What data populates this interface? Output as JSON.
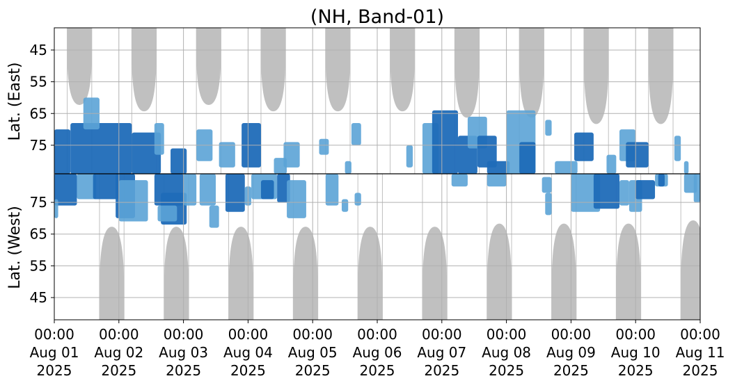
{
  "chart_data": {
    "type": "heatmap",
    "title": "(NH, Band-01)",
    "ylabel_top": "Lat. (East)",
    "ylabel_bottom": "Lat. (West)",
    "x_range": [
      "2025-08-01T00:00",
      "2025-08-11T00:00"
    ],
    "x_ticks": [
      {
        "time": "00:00",
        "date": "Aug 01",
        "year": "2025"
      },
      {
        "time": "00:00",
        "date": "Aug 02",
        "year": "2025"
      },
      {
        "time": "00:00",
        "date": "Aug 03",
        "year": "2025"
      },
      {
        "time": "00:00",
        "date": "Aug 04",
        "year": "2025"
      },
      {
        "time": "00:00",
        "date": "Aug 05",
        "year": "2025"
      },
      {
        "time": "00:00",
        "date": "Aug 06",
        "year": "2025"
      },
      {
        "time": "00:00",
        "date": "Aug 07",
        "year": "2025"
      },
      {
        "time": "00:00",
        "date": "Aug 08",
        "year": "2025"
      },
      {
        "time": "00:00",
        "date": "Aug 09",
        "year": "2025"
      },
      {
        "time": "00:00",
        "date": "Aug 10",
        "year": "2025"
      },
      {
        "time": "00:00",
        "date": "Aug 11",
        "year": "2025"
      }
    ],
    "y_ticks_east": [
      "45",
      "55",
      "65",
      "75"
    ],
    "y_ticks_west": [
      "75",
      "65",
      "55",
      "45"
    ],
    "lat_range": [
      38,
      84
    ],
    "grid": true,
    "colors": {
      "coverage_gap": "#c0c0c0",
      "detection_strong": "#1f6cb8",
      "detection_weak": "#5ba3d6",
      "grid": "#b0b0b0",
      "divider": "#000000"
    },
    "coverage_gaps": {
      "east": [
        {
          "center_day": 0.39,
          "lat_min": 61
        },
        {
          "center_day": 1.39,
          "lat_min": 63
        },
        {
          "center_day": 2.39,
          "lat_min": 61
        },
        {
          "center_day": 3.39,
          "lat_min": 63
        },
        {
          "center_day": 4.39,
          "lat_min": 63
        },
        {
          "center_day": 5.39,
          "lat_min": 63
        },
        {
          "center_day": 6.39,
          "lat_min": 65
        },
        {
          "center_day": 7.39,
          "lat_min": 65
        },
        {
          "center_day": 8.39,
          "lat_min": 67
        },
        {
          "center_day": 9.39,
          "lat_min": 67
        }
      ],
      "west": [
        {
          "center_day": 0.89,
          "lat_min": 66
        },
        {
          "center_day": 1.89,
          "lat_min": 66
        },
        {
          "center_day": 2.89,
          "lat_min": 66
        },
        {
          "center_day": 3.89,
          "lat_min": 66
        },
        {
          "center_day": 4.89,
          "lat_min": 66
        },
        {
          "center_day": 5.89,
          "lat_min": 66
        },
        {
          "center_day": 6.89,
          "lat_min": 67
        },
        {
          "center_day": 7.89,
          "lat_min": 67
        },
        {
          "center_day": 8.89,
          "lat_min": 67
        },
        {
          "center_day": 9.89,
          "lat_min": 68
        }
      ]
    },
    "detections": [
      {
        "side": "east",
        "day_start": 0.0,
        "day_end": 0.25,
        "lat_min": 70,
        "lat_max": 84,
        "level": "strong"
      },
      {
        "side": "east",
        "day_start": 0.25,
        "day_end": 1.2,
        "lat_min": 68,
        "lat_max": 84,
        "level": "strong"
      },
      {
        "side": "east",
        "day_start": 0.45,
        "day_end": 0.7,
        "lat_min": 60,
        "lat_max": 70,
        "level": "weak"
      },
      {
        "side": "east",
        "day_start": 1.2,
        "day_end": 1.65,
        "lat_min": 71,
        "lat_max": 84,
        "level": "strong"
      },
      {
        "side": "east",
        "day_start": 1.55,
        "day_end": 1.7,
        "lat_min": 68,
        "lat_max": 78,
        "level": "weak"
      },
      {
        "side": "east",
        "day_start": 1.8,
        "day_end": 2.05,
        "lat_min": 76,
        "lat_max": 84,
        "level": "strong"
      },
      {
        "side": "east",
        "day_start": 2.2,
        "day_end": 2.45,
        "lat_min": 70,
        "lat_max": 80,
        "level": "weak"
      },
      {
        "side": "east",
        "day_start": 2.55,
        "day_end": 2.8,
        "lat_min": 74,
        "lat_max": 82,
        "level": "weak"
      },
      {
        "side": "east",
        "day_start": 2.9,
        "day_end": 3.2,
        "lat_min": 68,
        "lat_max": 82,
        "level": "strong"
      },
      {
        "side": "east",
        "day_start": 3.4,
        "day_end": 3.6,
        "lat_min": 79,
        "lat_max": 84,
        "level": "weak"
      },
      {
        "side": "east",
        "day_start": 3.55,
        "day_end": 3.8,
        "lat_min": 74,
        "lat_max": 82,
        "level": "weak"
      },
      {
        "side": "east",
        "day_start": 4.1,
        "day_end": 4.25,
        "lat_min": 73,
        "lat_max": 78,
        "level": "weak"
      },
      {
        "side": "east",
        "day_start": 4.5,
        "day_end": 4.6,
        "lat_min": 80,
        "lat_max": 84,
        "level": "weak"
      },
      {
        "side": "east",
        "day_start": 4.6,
        "day_end": 4.75,
        "lat_min": 68,
        "lat_max": 75,
        "level": "weak"
      },
      {
        "side": "east",
        "day_start": 5.45,
        "day_end": 5.55,
        "lat_min": 75,
        "lat_max": 82,
        "level": "weak"
      },
      {
        "side": "east",
        "day_start": 5.7,
        "day_end": 5.95,
        "lat_min": 68,
        "lat_max": 84,
        "level": "weak"
      },
      {
        "side": "east",
        "day_start": 5.85,
        "day_end": 6.25,
        "lat_min": 64,
        "lat_max": 84,
        "level": "strong"
      },
      {
        "side": "east",
        "day_start": 6.25,
        "day_end": 6.55,
        "lat_min": 72,
        "lat_max": 84,
        "level": "strong"
      },
      {
        "side": "east",
        "day_start": 6.4,
        "day_end": 6.7,
        "lat_min": 66,
        "lat_max": 76,
        "level": "weak"
      },
      {
        "side": "east",
        "day_start": 6.55,
        "day_end": 6.85,
        "lat_min": 72,
        "lat_max": 82,
        "level": "strong"
      },
      {
        "side": "east",
        "day_start": 6.7,
        "day_end": 7.05,
        "lat_min": 80,
        "lat_max": 84,
        "level": "strong"
      },
      {
        "side": "east",
        "day_start": 7.0,
        "day_end": 7.45,
        "lat_min": 64,
        "lat_max": 84,
        "level": "weak"
      },
      {
        "side": "east",
        "day_start": 7.2,
        "day_end": 7.45,
        "lat_min": 74,
        "lat_max": 84,
        "level": "strong"
      },
      {
        "side": "east",
        "day_start": 7.6,
        "day_end": 7.7,
        "lat_min": 67,
        "lat_max": 72,
        "level": "weak"
      },
      {
        "side": "east",
        "day_start": 7.75,
        "day_end": 8.1,
        "lat_min": 80,
        "lat_max": 84,
        "level": "weak"
      },
      {
        "side": "east",
        "day_start": 8.05,
        "day_end": 8.35,
        "lat_min": 71,
        "lat_max": 80,
        "level": "strong"
      },
      {
        "side": "east",
        "day_start": 8.55,
        "day_end": 8.7,
        "lat_min": 78,
        "lat_max": 84,
        "level": "weak"
      },
      {
        "side": "east",
        "day_start": 8.75,
        "day_end": 9.0,
        "lat_min": 70,
        "lat_max": 80,
        "level": "weak"
      },
      {
        "side": "east",
        "day_start": 8.85,
        "day_end": 9.2,
        "lat_min": 74,
        "lat_max": 82,
        "level": "strong"
      },
      {
        "side": "east",
        "day_start": 9.6,
        "day_end": 9.7,
        "lat_min": 72,
        "lat_max": 80,
        "level": "weak"
      },
      {
        "side": "east",
        "day_start": 9.75,
        "day_end": 9.82,
        "lat_min": 80,
        "lat_max": 84,
        "level": "weak"
      },
      {
        "side": "west",
        "day_start": 0.0,
        "day_end": 0.35,
        "lat_min": 74,
        "lat_max": 84,
        "level": "strong"
      },
      {
        "side": "west",
        "day_start": 0.0,
        "day_end": 0.06,
        "lat_min": 70,
        "lat_max": 76,
        "level": "weak"
      },
      {
        "side": "west",
        "day_start": 0.35,
        "day_end": 0.65,
        "lat_min": 76,
        "lat_max": 84,
        "level": "weak"
      },
      {
        "side": "west",
        "day_start": 0.6,
        "day_end": 1.0,
        "lat_min": 76,
        "lat_max": 84,
        "level": "strong"
      },
      {
        "side": "west",
        "day_start": 0.95,
        "day_end": 1.25,
        "lat_min": 70,
        "lat_max": 84,
        "level": "strong"
      },
      {
        "side": "west",
        "day_start": 1.0,
        "day_end": 1.45,
        "lat_min": 69,
        "lat_max": 82,
        "level": "weak"
      },
      {
        "side": "west",
        "day_start": 1.55,
        "day_end": 2.0,
        "lat_min": 74,
        "lat_max": 84,
        "level": "strong"
      },
      {
        "side": "west",
        "day_start": 1.65,
        "day_end": 2.05,
        "lat_min": 68,
        "lat_max": 78,
        "level": "strong"
      },
      {
        "side": "west",
        "day_start": 1.6,
        "day_end": 1.9,
        "lat_min": 69,
        "lat_max": 74,
        "level": "weak"
      },
      {
        "side": "west",
        "day_start": 2.0,
        "day_end": 2.2,
        "lat_min": 74,
        "lat_max": 84,
        "level": "weak"
      },
      {
        "side": "west",
        "day_start": 2.25,
        "day_end": 2.5,
        "lat_min": 74,
        "lat_max": 84,
        "level": "weak"
      },
      {
        "side": "west",
        "day_start": 2.4,
        "day_end": 2.55,
        "lat_min": 67,
        "lat_max": 74,
        "level": "weak"
      },
      {
        "side": "west",
        "day_start": 2.65,
        "day_end": 2.95,
        "lat_min": 72,
        "lat_max": 84,
        "level": "strong"
      },
      {
        "side": "west",
        "day_start": 2.95,
        "day_end": 3.05,
        "lat_min": 74,
        "lat_max": 80,
        "level": "weak"
      },
      {
        "side": "west",
        "day_start": 3.05,
        "day_end": 3.45,
        "lat_min": 76,
        "lat_max": 84,
        "level": "weak"
      },
      {
        "side": "west",
        "day_start": 3.2,
        "day_end": 3.4,
        "lat_min": 76,
        "lat_max": 82,
        "level": "strong"
      },
      {
        "side": "west",
        "day_start": 3.45,
        "day_end": 3.65,
        "lat_min": 75,
        "lat_max": 84,
        "level": "strong"
      },
      {
        "side": "west",
        "day_start": 3.6,
        "day_end": 3.9,
        "lat_min": 70,
        "lat_max": 82,
        "level": "weak"
      },
      {
        "side": "west",
        "day_start": 4.2,
        "day_end": 4.4,
        "lat_min": 74,
        "lat_max": 84,
        "level": "weak"
      },
      {
        "side": "west",
        "day_start": 4.65,
        "day_end": 4.75,
        "lat_min": 74,
        "lat_max": 78,
        "level": "weak"
      },
      {
        "side": "west",
        "day_start": 4.45,
        "day_end": 4.55,
        "lat_min": 72,
        "lat_max": 76,
        "level": "weak"
      },
      {
        "side": "west",
        "day_start": 6.15,
        "day_end": 6.4,
        "lat_min": 80,
        "lat_max": 84,
        "level": "weak"
      },
      {
        "side": "west",
        "day_start": 6.7,
        "day_end": 7.0,
        "lat_min": 80,
        "lat_max": 84,
        "level": "weak"
      },
      {
        "side": "west",
        "day_start": 7.55,
        "day_end": 7.7,
        "lat_min": 78,
        "lat_max": 83,
        "level": "weak"
      },
      {
        "side": "west",
        "day_start": 7.6,
        "day_end": 7.7,
        "lat_min": 71,
        "lat_max": 78,
        "level": "weak"
      },
      {
        "side": "west",
        "day_start": 8.0,
        "day_end": 8.45,
        "lat_min": 72,
        "lat_max": 84,
        "level": "weak"
      },
      {
        "side": "west",
        "day_start": 8.35,
        "day_end": 8.75,
        "lat_min": 73,
        "lat_max": 84,
        "level": "strong"
      },
      {
        "side": "west",
        "day_start": 8.75,
        "day_end": 8.9,
        "lat_min": 74,
        "lat_max": 82,
        "level": "weak"
      },
      {
        "side": "west",
        "day_start": 8.9,
        "day_end": 9.1,
        "lat_min": 72,
        "lat_max": 82,
        "level": "weak"
      },
      {
        "side": "west",
        "day_start": 9.0,
        "day_end": 9.3,
        "lat_min": 76,
        "lat_max": 82,
        "level": "strong"
      },
      {
        "side": "west",
        "day_start": 9.3,
        "day_end": 9.5,
        "lat_min": 80,
        "lat_max": 84,
        "level": "weak"
      },
      {
        "side": "west",
        "day_start": 9.35,
        "day_end": 9.45,
        "lat_min": 80,
        "lat_max": 84,
        "level": "strong"
      },
      {
        "side": "west",
        "day_start": 9.75,
        "day_end": 9.95,
        "lat_min": 78,
        "lat_max": 84,
        "level": "weak"
      },
      {
        "side": "west",
        "day_start": 9.9,
        "day_end": 10.0,
        "lat_min": 75,
        "lat_max": 84,
        "level": "weak"
      }
    ]
  }
}
